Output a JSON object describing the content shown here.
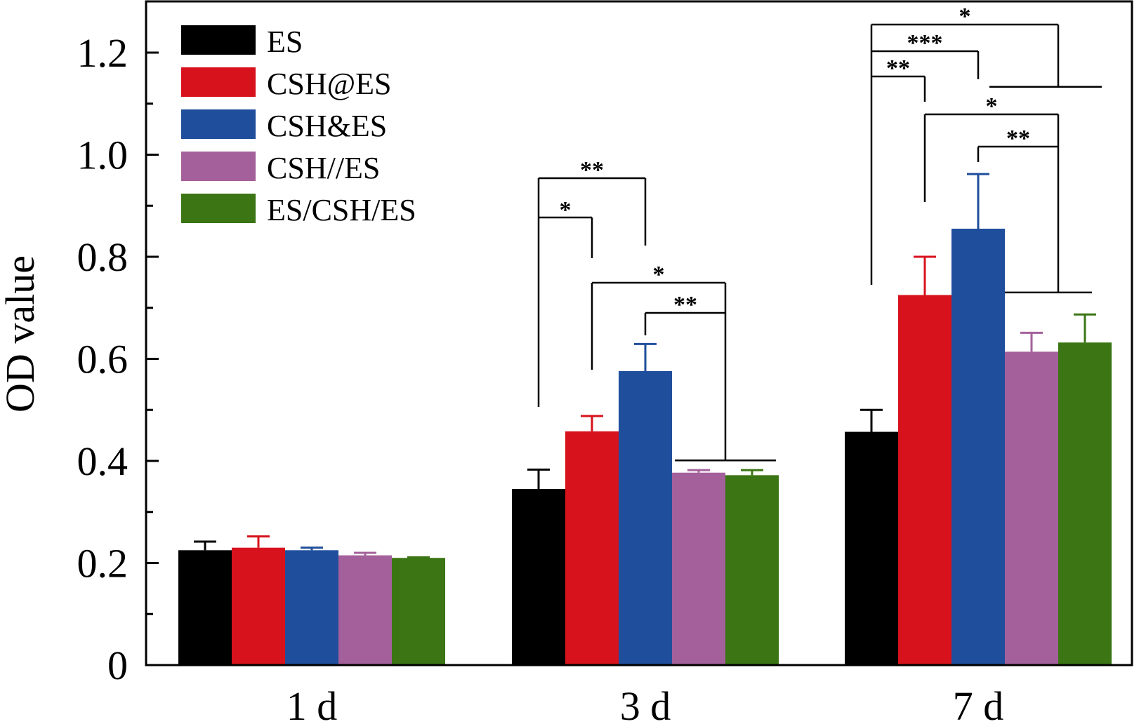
{
  "chart_data": {
    "type": "bar",
    "title": "",
    "xlabel": "",
    "ylabel": "OD value",
    "ylim": [
      0,
      1.3
    ],
    "yticks": [
      0,
      0.2,
      0.4,
      0.6,
      0.8,
      1.0,
      1.2
    ],
    "ytick_labels": [
      "0",
      "0.2",
      "0.4",
      "0.6",
      "0.8",
      "1.0",
      "1.2"
    ],
    "grid": false,
    "legend_position": "top-left",
    "categories": [
      "1 d",
      "3 d",
      "7 d"
    ],
    "series": [
      {
        "name": "ES",
        "color": "#000000",
        "values": [
          0.225,
          0.345,
          0.457
        ],
        "errors": [
          0.017,
          0.038,
          0.043
        ]
      },
      {
        "name": "CSH@ES",
        "color": "#d7121c",
        "values": [
          0.23,
          0.458,
          0.725
        ],
        "errors": [
          0.022,
          0.03,
          0.075
        ]
      },
      {
        "name": "CSH&ES",
        "color": "#1f4e9c",
        "values": [
          0.225,
          0.576,
          0.855
        ],
        "errors": [
          0.005,
          0.053,
          0.107
        ]
      },
      {
        "name": "CSH//ES",
        "color": "#a4609a",
        "values": [
          0.215,
          0.377,
          0.614
        ],
        "errors": [
          0.005,
          0.005,
          0.037
        ]
      },
      {
        "name": "ES/CSH/ES",
        "color": "#3b7514",
        "values": [
          0.21,
          0.372,
          0.632
        ],
        "errors": [
          0.001,
          0.01,
          0.055
        ]
      }
    ],
    "significance": [
      {
        "category": "3 d",
        "from": "ES",
        "to": "CSH@ES",
        "label": "*"
      },
      {
        "category": "3 d",
        "from": "ES",
        "to": "CSH&ES",
        "label": "**"
      },
      {
        "category": "3 d",
        "from": "CSH@ES",
        "to": "CSH//ES + ES/CSH/ES",
        "label": "*"
      },
      {
        "category": "3 d",
        "from": "CSH&ES",
        "to": "CSH//ES + ES/CSH/ES",
        "label": "**"
      },
      {
        "category": "7 d",
        "from": "ES",
        "to": "CSH@ES",
        "label": "**"
      },
      {
        "category": "7 d",
        "from": "ES",
        "to": "CSH&ES",
        "label": "***"
      },
      {
        "category": "7 d",
        "from": "ES",
        "to": "CSH//ES + ES/CSH/ES",
        "label": "*"
      },
      {
        "category": "7 d",
        "from": "CSH@ES",
        "to": "CSH//ES + ES/CSH/ES",
        "label": "*"
      },
      {
        "category": "7 d",
        "from": "CSH&ES",
        "to": "CSH//ES + ES/CSH/ES",
        "label": "**"
      }
    ]
  }
}
